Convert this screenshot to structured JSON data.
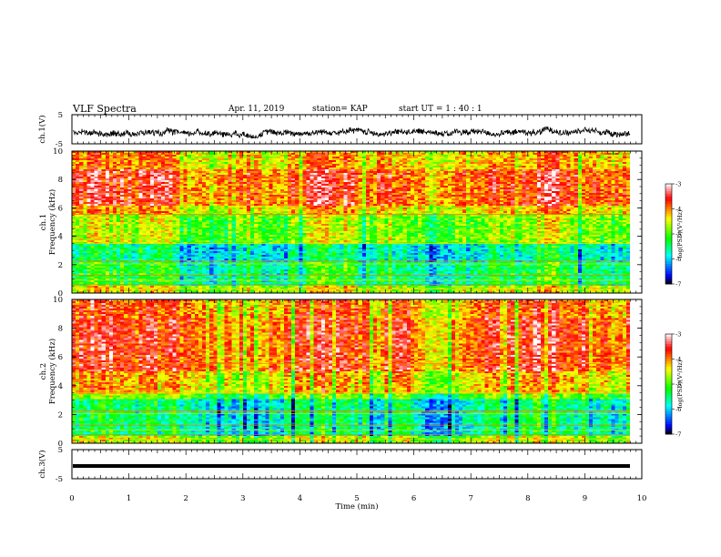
{
  "header": {
    "title": "VLF Spectra",
    "date": "Apr. 11, 2019",
    "station": "station= KAP",
    "start": "start  UT =   1 : 40 : 1"
  },
  "chart_data": [
    {
      "type": "line",
      "name": "ch1-waveform",
      "ylabel": "ch.1(V)",
      "ylim": [
        -5,
        5
      ],
      "yticks": [
        "5",
        "-5"
      ],
      "xlim": [
        0,
        10
      ],
      "description_level": [
        0,
        10
      ],
      "approx_mean": -1.0,
      "approx_range": [
        -3.0,
        1.5
      ]
    },
    {
      "type": "heatmap",
      "name": "ch1-spectrogram",
      "ylabel_line1": "ch.1",
      "ylabel_line2": "Frequency (kHz)",
      "ylim": [
        0,
        10
      ],
      "yticks": [
        "0",
        "2",
        "4",
        "6",
        "8",
        "10"
      ],
      "xlim": [
        0,
        9.8
      ],
      "colorbar": {
        "label": "log(PSD)(V²/Hz)",
        "range": [
          -7,
          -3
        ],
        "ticks": [
          "-3",
          "-4",
          "-5",
          "-6",
          "-7"
        ],
        "colors": [
          "#000000",
          "#0000ff",
          "#00ffff",
          "#00ff00",
          "#ffff00",
          "#ff0000",
          "#ffffff"
        ]
      },
      "bands_khz": [
        {
          "from": 0.0,
          "to": 0.5,
          "level": -4.6
        },
        {
          "from": 0.5,
          "to": 2.2,
          "level": -5.4
        },
        {
          "from": 2.2,
          "to": 3.4,
          "level": -5.7
        },
        {
          "from": 3.4,
          "to": 5.5,
          "level": -4.8
        },
        {
          "from": 5.5,
          "to": 6.2,
          "level": -4.3
        },
        {
          "from": 6.2,
          "to": 8.8,
          "level": -3.8
        },
        {
          "from": 8.8,
          "to": 10.0,
          "level": -4.2
        }
      ]
    },
    {
      "type": "heatmap",
      "name": "ch2-spectrogram",
      "ylabel_line1": "ch.2",
      "ylabel_line2": "Frequency (kHz)",
      "ylim": [
        0,
        10
      ],
      "yticks": [
        "0",
        "2",
        "4",
        "6",
        "8",
        "10"
      ],
      "xlim": [
        0,
        9.8
      ],
      "colorbar": {
        "label": "log(PSD)(V²/Hz)",
        "range": [
          -7,
          -3
        ],
        "ticks": [
          "-3",
          "-4",
          "-5",
          "-6",
          "-7"
        ],
        "colors": [
          "#000000",
          "#0000ff",
          "#00ffff",
          "#00ff00",
          "#ffff00",
          "#ff0000",
          "#ffffff"
        ]
      },
      "bands_khz": [
        {
          "from": 0.0,
          "to": 0.5,
          "level": -4.7
        },
        {
          "from": 0.5,
          "to": 3.0,
          "level": -5.6
        },
        {
          "from": 3.0,
          "to": 3.5,
          "level": -5.0
        },
        {
          "from": 3.5,
          "to": 5.0,
          "level": -4.3
        },
        {
          "from": 5.0,
          "to": 8.8,
          "level": -3.8
        },
        {
          "from": 8.8,
          "to": 10.0,
          "level": -4.0
        }
      ]
    },
    {
      "type": "line",
      "name": "ch3-waveform",
      "ylabel": "ch.3(V)",
      "ylim": [
        -5,
        5
      ],
      "yticks": [
        "5",
        "-5"
      ],
      "xlim": [
        0,
        9.8
      ],
      "constant_value": 0,
      "xlabel": "Time (min)",
      "xticks": [
        "0",
        "1",
        "2",
        "3",
        "4",
        "5",
        "6",
        "7",
        "8",
        "9",
        "10"
      ]
    }
  ]
}
